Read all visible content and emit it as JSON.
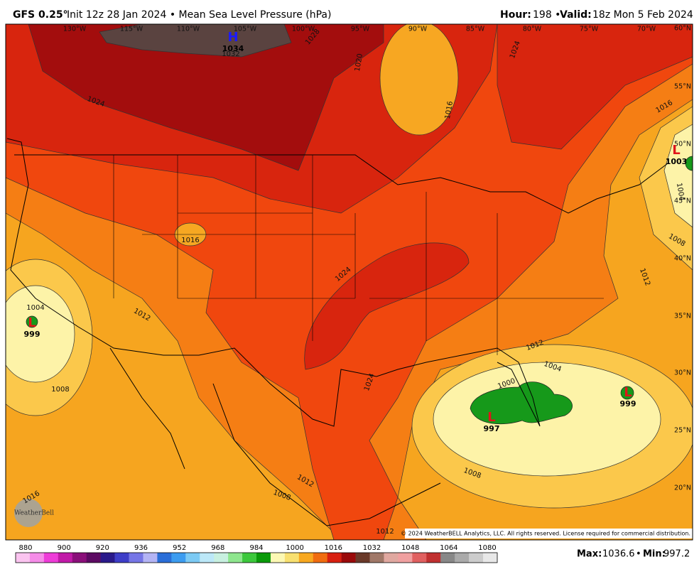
{
  "header": {
    "model": "GFS 0.25°",
    "run": "Init 12z 28 Jan 2024 • Mean Sea Level Pressure (hPa)",
    "valid": [
      {
        "label": "Hour:",
        "value": "198 •"
      },
      {
        "label": "Valid:",
        "value": "18z Mon 5 Feb 2024"
      }
    ]
  },
  "map": {
    "longitude_labels": [
      "130°W",
      "115°W",
      "110°W",
      "105°W",
      "100°W",
      "95°W",
      "90°W",
      "85°W",
      "80°W",
      "75°W",
      "70°W"
    ],
    "latitude_labels": [
      "60°N",
      "55°N",
      "50°N",
      "45°N",
      "40°N",
      "35°N",
      "30°N",
      "25°N",
      "20°N"
    ],
    "isobar_labels": [
      "1024",
      "1028",
      "1032",
      "1020",
      "1016",
      "1024",
      "1016",
      "1016",
      "1024",
      "1012",
      "1004",
      "1008",
      "1012",
      "1004",
      "1000",
      "1008",
      "1012",
      "1008",
      "1016",
      "1012",
      "1024",
      "1012",
      "1008",
      "1004"
    ],
    "pressure_centers": [
      {
        "symbol": "H",
        "value": "1034"
      },
      {
        "symbol": "L",
        "value": "999"
      },
      {
        "symbol": "L",
        "value": "1003"
      },
      {
        "symbol": "L",
        "value": "997"
      },
      {
        "symbol": "L",
        "value": "999"
      }
    ],
    "logo": "WeatherBell",
    "copyright": "© 2024 WeatherBELL Analytics, LLC. All rights reserved. License required for commercial distribution."
  },
  "colorbar": {
    "ticks": [
      880,
      900,
      920,
      936,
      952,
      968,
      984,
      1000,
      1016,
      1032,
      1048,
      1064,
      1080
    ]
  },
  "footer": {
    "max_label": "Max:",
    "max": 1036.6,
    "separator": "•",
    "min_label": "Min:",
    "min": 997.2
  }
}
